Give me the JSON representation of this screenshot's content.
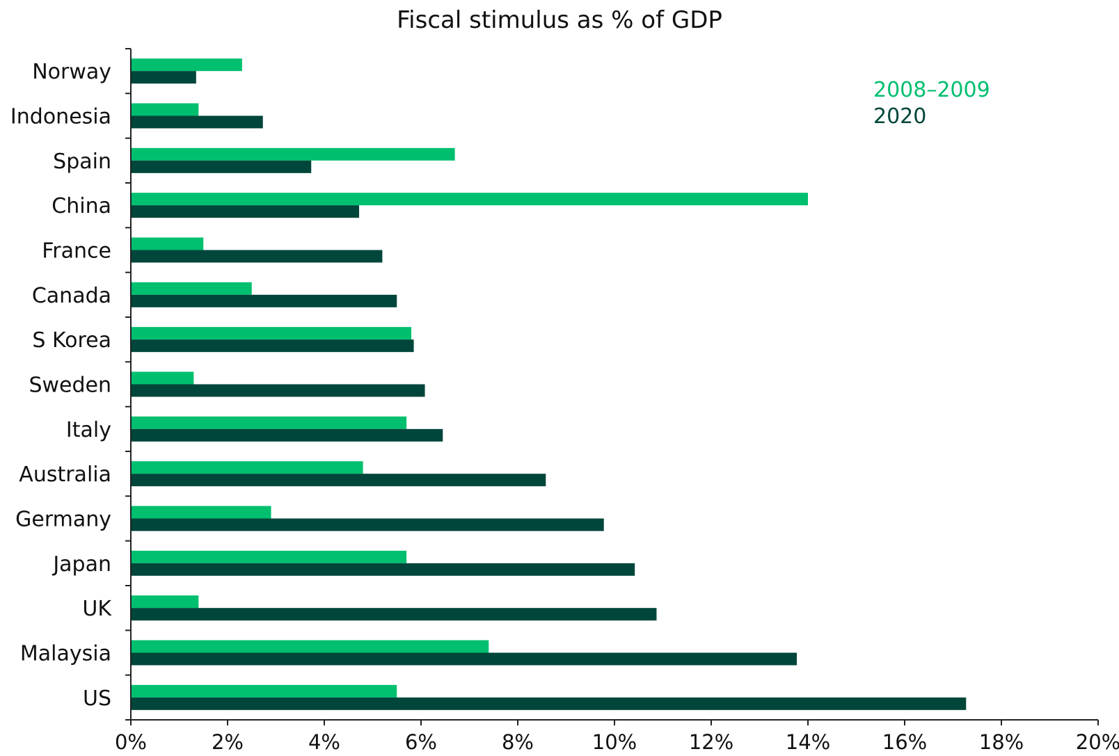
{
  "chart_data": {
    "type": "bar",
    "orientation": "horizontal",
    "title": "Fiscal stimulus as % of GDP",
    "xlabel": "",
    "ylabel": "",
    "categories": [
      "Norway",
      "Indonesia",
      "Spain",
      "China",
      "France",
      "Canada",
      "S Korea",
      "Sweden",
      "Italy",
      "Australia",
      "Germany",
      "Japan",
      "UK",
      "Malaysia",
      "US"
    ],
    "series": [
      {
        "name": "2008–2009",
        "color": "#00BF6F",
        "values": [
          2.3,
          1.4,
          6.7,
          14.0,
          1.5,
          2.5,
          5.8,
          1.3,
          5.7,
          4.8,
          2.9,
          5.7,
          1.4,
          7.4,
          5.5
        ]
      },
      {
        "name": "2020",
        "color": "#00463A",
        "values": [
          1.35,
          2.73,
          3.73,
          4.72,
          5.2,
          5.5,
          5.85,
          6.08,
          6.45,
          8.58,
          9.78,
          10.42,
          10.87,
          13.77,
          17.27
        ]
      }
    ],
    "xlim": [
      0,
      20
    ],
    "xticks": [
      0,
      2,
      4,
      6,
      8,
      10,
      12,
      14,
      16,
      18,
      20
    ],
    "xtick_labels": [
      "0%",
      "2%",
      "4%",
      "6%",
      "8%",
      "10%",
      "12%",
      "14%",
      "16%",
      "18%",
      "20%"
    ],
    "grid": false,
    "legend_position": "top-right"
  }
}
